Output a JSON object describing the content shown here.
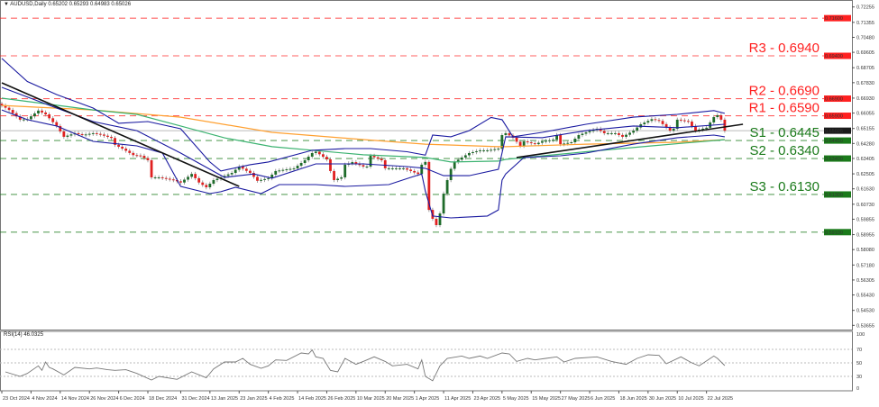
{
  "header": {
    "symbol_label": "AUDUSD,Daily",
    "ohlc": "0.65202 0.65293 0.64983 0.65026"
  },
  "rsi_header": "RSI(14) 46.0325",
  "colors": {
    "up": "#1e6b2a",
    "down": "#e02020",
    "bb": "#1a1aa0",
    "ma_fast": "#3cb371",
    "ma_slow": "#ffa030",
    "resistance": "#ff2020",
    "support": "#1a7a1a",
    "current": "#1a1a1a",
    "rsi": "#777777"
  },
  "chart_data": [
    {
      "type": "candlestick",
      "title": "AUDUSD,Daily",
      "x_unit": "trading day index",
      "ylim": [
        0.5355,
        0.7235
      ],
      "y_ticks": [
        "0.72255",
        "0.71355",
        "0.70480",
        "0.69605",
        "0.68705",
        "0.67830",
        "0.66930",
        "0.66055",
        "0.65155",
        "0.64280",
        "0.63405",
        "0.62505",
        "0.61630",
        "0.60730",
        "0.59855",
        "0.58955",
        "0.58080",
        "0.57180",
        "0.56305",
        "0.55430",
        "0.54530",
        "0.53655"
      ],
      "x_ticks": [
        {
          "day": 0,
          "label": "23 Oct 2024"
        },
        {
          "day": 8,
          "label": "4 Nov 2024"
        },
        {
          "day": 16,
          "label": "14 Nov 2024"
        },
        {
          "day": 24,
          "label": "26 Nov 2024"
        },
        {
          "day": 32,
          "label": "6 Dec 2024"
        },
        {
          "day": 40,
          "label": "18 Dec 2024"
        },
        {
          "day": 49,
          "label": "31 Dec 2024"
        },
        {
          "day": 57,
          "label": "13 Jan 2025"
        },
        {
          "day": 65,
          "label": "23 Jan 2025"
        },
        {
          "day": 73,
          "label": "4 Feb 2025"
        },
        {
          "day": 81,
          "label": "14 Feb 2025"
        },
        {
          "day": 89,
          "label": "26 Feb 2025"
        },
        {
          "day": 97,
          "label": "10 Mar 2025"
        },
        {
          "day": 105,
          "label": "20 Mar 2025"
        },
        {
          "day": 113,
          "label": "1 Apr 2025"
        },
        {
          "day": 121,
          "label": "11 Apr 2025"
        },
        {
          "day": 129,
          "label": "23 Apr 2025"
        },
        {
          "day": 137,
          "label": "5 May 2025"
        },
        {
          "day": 145,
          "label": "15 May 2025"
        },
        {
          "day": 153,
          "label": "27 May 2025"
        },
        {
          "day": 161,
          "label": "6 Jun 2025"
        },
        {
          "day": 169,
          "label": "18 Jun 2025"
        },
        {
          "day": 177,
          "label": "30 Jun 2025"
        },
        {
          "day": 185,
          "label": "10 Jul 2025"
        },
        {
          "day": 193,
          "label": "22 Jul 2025"
        }
      ],
      "close_anchors": [
        [
          0,
          0.665
        ],
        [
          2,
          0.6624
        ],
        [
          5,
          0.6567
        ],
        [
          7,
          0.657
        ],
        [
          10,
          0.662
        ],
        [
          12,
          0.6598
        ],
        [
          15,
          0.653
        ],
        [
          17,
          0.6467
        ],
        [
          20,
          0.6488
        ],
        [
          22,
          0.6477
        ],
        [
          25,
          0.6488
        ],
        [
          27,
          0.648
        ],
        [
          30,
          0.646
        ],
        [
          31,
          0.642
        ],
        [
          33,
          0.6398
        ],
        [
          36,
          0.636
        ],
        [
          38,
          0.6356
        ],
        [
          40,
          0.633
        ],
        [
          41,
          0.623
        ],
        [
          43,
          0.623
        ],
        [
          47,
          0.6214
        ],
        [
          49,
          0.62
        ],
        [
          52,
          0.625
        ],
        [
          54,
          0.62
        ],
        [
          56,
          0.6172
        ],
        [
          58,
          0.6214
        ],
        [
          60,
          0.623
        ],
        [
          63,
          0.6256
        ],
        [
          65,
          0.6293
        ],
        [
          68,
          0.6256
        ],
        [
          70,
          0.621
        ],
        [
          73,
          0.6225
        ],
        [
          75,
          0.6267
        ],
        [
          78,
          0.6277
        ],
        [
          80,
          0.6282
        ],
        [
          83,
          0.633
        ],
        [
          85,
          0.6372
        ],
        [
          86,
          0.638
        ],
        [
          89,
          0.6335
        ],
        [
          90,
          0.6267
        ],
        [
          91,
          0.6214
        ],
        [
          93,
          0.623
        ],
        [
          94,
          0.6304
        ],
        [
          96,
          0.6319
        ],
        [
          99,
          0.6293
        ],
        [
          100,
          0.6293
        ],
        [
          101,
          0.6356
        ],
        [
          104,
          0.633
        ],
        [
          105,
          0.6283
        ],
        [
          107,
          0.6283
        ],
        [
          110,
          0.6283
        ],
        [
          112,
          0.6267
        ],
        [
          114,
          0.625
        ],
        [
          115,
          0.6304
        ],
        [
          116,
          0.632
        ],
        [
          117,
          0.604
        ],
        [
          118,
          0.5988
        ],
        [
          119,
          0.5951
        ],
        [
          120,
          0.6019
        ],
        [
          121,
          0.6135
        ],
        [
          122,
          0.6214
        ],
        [
          123,
          0.628
        ],
        [
          124,
          0.632
        ],
        [
          126,
          0.6346
        ],
        [
          128,
          0.6372
        ],
        [
          131,
          0.6388
        ],
        [
          133,
          0.6388
        ],
        [
          136,
          0.6398
        ],
        [
          137,
          0.6477
        ],
        [
          138,
          0.6488
        ],
        [
          140,
          0.6462
        ],
        [
          142,
          0.6414
        ],
        [
          143,
          0.644
        ],
        [
          146,
          0.6424
        ],
        [
          148,
          0.644
        ],
        [
          151,
          0.645
        ],
        [
          152,
          0.6477
        ],
        [
          153,
          0.6424
        ],
        [
          156,
          0.6435
        ],
        [
          158,
          0.6477
        ],
        [
          160,
          0.6493
        ],
        [
          163,
          0.6514
        ],
        [
          165,
          0.6488
        ],
        [
          168,
          0.6488
        ],
        [
          170,
          0.6467
        ],
        [
          173,
          0.6503
        ],
        [
          175,
          0.654
        ],
        [
          178,
          0.657
        ],
        [
          180,
          0.656
        ],
        [
          183,
          0.6503
        ],
        [
          184,
          0.6514
        ],
        [
          185,
          0.6567
        ],
        [
          188,
          0.6556
        ],
        [
          190,
          0.6503
        ],
        [
          193,
          0.652
        ],
        [
          195,
          0.6582
        ],
        [
          196,
          0.6593
        ],
        [
          197,
          0.6567
        ],
        [
          198,
          0.65026
        ]
      ],
      "bollinger_upper": [
        [
          0,
          0.6925
        ],
        [
          7,
          0.679
        ],
        [
          15,
          0.6714
        ],
        [
          25,
          0.6635
        ],
        [
          32,
          0.6546
        ],
        [
          40,
          0.6556
        ],
        [
          49,
          0.6514
        ],
        [
          57,
          0.632
        ],
        [
          60,
          0.6267
        ],
        [
          68,
          0.6304
        ],
        [
          73,
          0.632
        ],
        [
          85,
          0.6388
        ],
        [
          94,
          0.6398
        ],
        [
          101,
          0.6398
        ],
        [
          111,
          0.638
        ],
        [
          116,
          0.636
        ],
        [
          118,
          0.6477
        ],
        [
          123,
          0.6467
        ],
        [
          128,
          0.6503
        ],
        [
          134,
          0.658
        ],
        [
          137,
          0.6567
        ],
        [
          140,
          0.6467
        ],
        [
          148,
          0.6493
        ],
        [
          160,
          0.654
        ],
        [
          173,
          0.6582
        ],
        [
          185,
          0.6598
        ],
        [
          195,
          0.662
        ],
        [
          198,
          0.6604
        ]
      ],
      "bollinger_middle": [
        [
          0,
          0.6756
        ],
        [
          15,
          0.6635
        ],
        [
          25,
          0.6556
        ],
        [
          37,
          0.6503
        ],
        [
          49,
          0.6372
        ],
        [
          61,
          0.623
        ],
        [
          69,
          0.625
        ],
        [
          74,
          0.6225
        ],
        [
          86,
          0.6309
        ],
        [
          99,
          0.6309
        ],
        [
          111,
          0.6293
        ],
        [
          116,
          0.6283
        ],
        [
          121,
          0.624
        ],
        [
          128,
          0.624
        ],
        [
          136,
          0.6277
        ],
        [
          138,
          0.6467
        ],
        [
          148,
          0.6462
        ],
        [
          160,
          0.6503
        ],
        [
          173,
          0.653
        ],
        [
          185,
          0.652
        ],
        [
          198,
          0.654
        ]
      ],
      "bollinger_lower": [
        [
          0,
          0.6624
        ],
        [
          7,
          0.6567
        ],
        [
          15,
          0.653
        ],
        [
          25,
          0.644
        ],
        [
          37,
          0.6414
        ],
        [
          44,
          0.6372
        ],
        [
          49,
          0.6177
        ],
        [
          57,
          0.6135
        ],
        [
          60,
          0.6146
        ],
        [
          64,
          0.6172
        ],
        [
          71,
          0.6135
        ],
        [
          76,
          0.6188
        ],
        [
          86,
          0.6188
        ],
        [
          94,
          0.6177
        ],
        [
          106,
          0.6188
        ],
        [
          112,
          0.623
        ],
        [
          115,
          0.625
        ],
        [
          116,
          0.615
        ],
        [
          118,
          0.6004
        ],
        [
          123,
          0.5993
        ],
        [
          133,
          0.6004
        ],
        [
          136,
          0.604
        ],
        [
          137,
          0.6214
        ],
        [
          138,
          0.625
        ],
        [
          143,
          0.6346
        ],
        [
          153,
          0.6356
        ],
        [
          160,
          0.6372
        ],
        [
          173,
          0.6424
        ],
        [
          185,
          0.6462
        ],
        [
          195,
          0.6477
        ],
        [
          198,
          0.6467
        ]
      ],
      "ma_fast": [
        [
          0,
          0.6693
        ],
        [
          25,
          0.6624
        ],
        [
          37,
          0.6598
        ],
        [
          49,
          0.653
        ],
        [
          61,
          0.6461
        ],
        [
          74,
          0.6409
        ],
        [
          99,
          0.6362
        ],
        [
          116,
          0.6346
        ],
        [
          123,
          0.632
        ],
        [
          136,
          0.6325
        ],
        [
          138,
          0.6335
        ],
        [
          160,
          0.638
        ],
        [
          178,
          0.6414
        ],
        [
          198,
          0.645
        ]
      ],
      "ma_slow": [
        [
          0,
          0.665
        ],
        [
          25,
          0.6624
        ],
        [
          49,
          0.6582
        ],
        [
          74,
          0.6493
        ],
        [
          99,
          0.6451
        ],
        [
          116,
          0.6424
        ],
        [
          136,
          0.6409
        ],
        [
          138,
          0.6409
        ],
        [
          160,
          0.6424
        ],
        [
          185,
          0.6435
        ],
        [
          198,
          0.645
        ]
      ],
      "trendlines": [
        {
          "name": "downtrend",
          "points": [
            [
              0,
              0.6782
            ],
            [
              65,
              0.6177
            ]
          ]
        },
        {
          "name": "uptrend",
          "points": [
            [
              141,
              0.6346
            ],
            [
              203,
              0.654
            ]
          ]
        }
      ],
      "levels": [
        {
          "price": 0.716,
          "tag": "0.71600",
          "kind": "resistance",
          "label": ""
        },
        {
          "price": 0.694,
          "tag": "0.69400",
          "kind": "resistance",
          "label": "R3 - 0.6940"
        },
        {
          "price": 0.669,
          "tag": "0.66900",
          "kind": "resistance",
          "label": "R2 - 0.6690"
        },
        {
          "price": 0.659,
          "tag": "0.65900",
          "kind": "resistance",
          "label": "R1 - 0.6590"
        },
        {
          "price": 0.65026,
          "tag": "0.65026",
          "kind": "current",
          "label": ""
        },
        {
          "price": 0.6445,
          "tag": "0.64450",
          "kind": "support",
          "label": "S1 - 0.6445"
        },
        {
          "price": 0.634,
          "tag": "0.63400",
          "kind": "support",
          "label": "S2 - 0.6340"
        },
        {
          "price": 0.613,
          "tag": "0.61300",
          "kind": "support",
          "label": "S3 - 0.6130"
        },
        {
          "price": 0.591,
          "tag": "0.59100",
          "kind": "support",
          "label": ""
        }
      ]
    },
    {
      "type": "line",
      "title": "RSI(14) 46.0325",
      "ylim": [
        0,
        100
      ],
      "y_ticks": [
        "100",
        "70",
        "50",
        "30",
        "0"
      ],
      "levels": [
        70,
        50,
        30
      ],
      "series": [
        [
          1,
          36.7
        ],
        [
          5,
          30
        ],
        [
          7,
          34.4
        ],
        [
          10,
          45.6
        ],
        [
          11,
          38.9
        ],
        [
          12,
          51.3
        ],
        [
          13,
          43.3
        ],
        [
          14,
          41.1
        ],
        [
          17,
          32.2
        ],
        [
          20,
          43.3
        ],
        [
          24,
          41.1
        ],
        [
          26,
          42.4
        ],
        [
          29,
          39.8
        ],
        [
          31,
          38.9
        ],
        [
          34,
          39.8
        ],
        [
          37,
          34.4
        ],
        [
          41,
          24.7
        ],
        [
          43,
          30
        ],
        [
          48,
          25.6
        ],
        [
          52,
          36.7
        ],
        [
          56,
          27.8
        ],
        [
          58,
          41.1
        ],
        [
          61,
          51.3
        ],
        [
          64,
          51.3
        ],
        [
          66,
          56.7
        ],
        [
          68,
          47.8
        ],
        [
          71,
          42
        ],
        [
          73,
          45.6
        ],
        [
          75,
          54.4
        ],
        [
          78,
          53.6
        ],
        [
          82,
          64.7
        ],
        [
          84,
          63.3
        ],
        [
          85,
          69.1
        ],
        [
          86,
          58.9
        ],
        [
          88,
          56.7
        ],
        [
          90,
          38.9
        ],
        [
          92,
          36.7
        ],
        [
          94,
          56.7
        ],
        [
          97,
          47.8
        ],
        [
          99,
          52.2
        ],
        [
          102,
          58.9
        ],
        [
          105,
          52.2
        ],
        [
          107,
          45.6
        ],
        [
          111,
          47.8
        ],
        [
          114,
          41.1
        ],
        [
          115,
          54.4
        ],
        [
          116,
          30
        ],
        [
          118,
          23.4
        ],
        [
          120,
          45.6
        ],
        [
          122,
          56.7
        ],
        [
          126,
          60.2
        ],
        [
          128,
          56.7
        ],
        [
          131,
          60.2
        ],
        [
          133,
          56.7
        ],
        [
          137,
          64.7
        ],
        [
          139,
          63.3
        ],
        [
          141,
          52.2
        ],
        [
          144,
          56.7
        ],
        [
          146,
          54.4
        ],
        [
          149,
          56.7
        ],
        [
          152,
          58.9
        ],
        [
          154,
          51.3
        ],
        [
          157,
          56.7
        ],
        [
          163,
          58.9
        ],
        [
          167,
          52.2
        ],
        [
          171,
          47.8
        ],
        [
          174,
          56.7
        ],
        [
          177,
          62
        ],
        [
          180,
          61.1
        ],
        [
          182,
          48.7
        ],
        [
          186,
          58.9
        ],
        [
          189,
          50
        ],
        [
          191,
          45.6
        ],
        [
          195,
          60.2
        ],
        [
          196,
          56.7
        ],
        [
          198,
          46.03
        ]
      ]
    }
  ]
}
